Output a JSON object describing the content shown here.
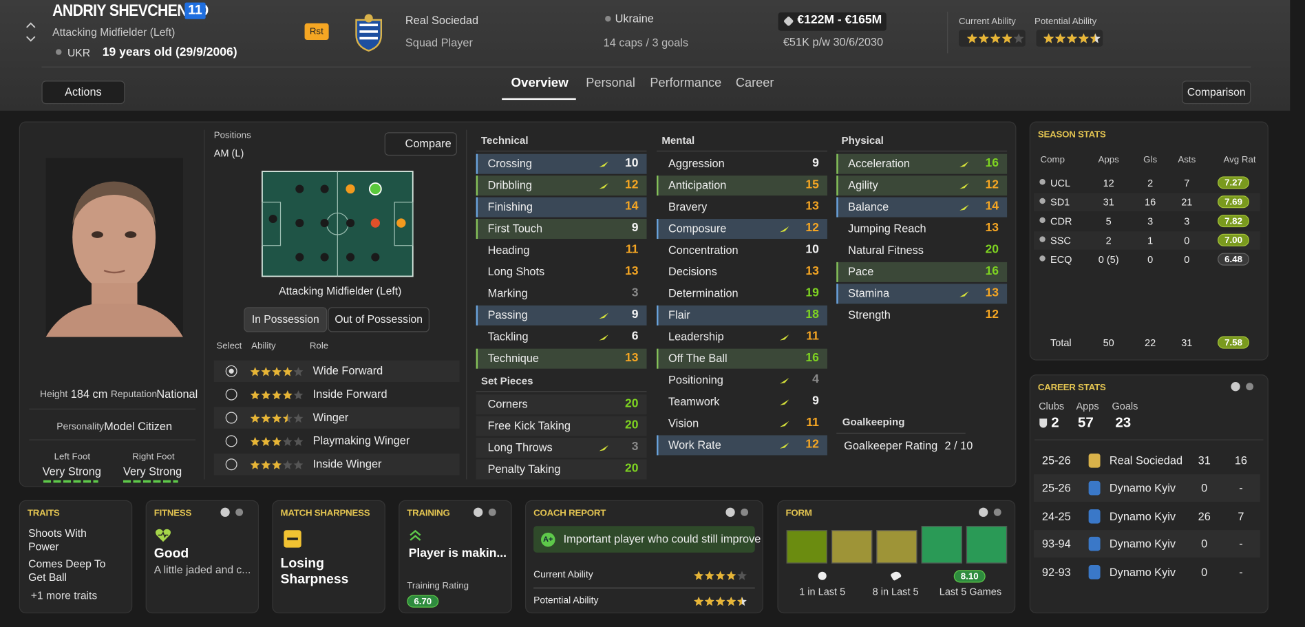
{
  "header": {
    "name": "ANDRIY SHEVCHENKO",
    "number": "11",
    "position": "Attacking Midfielder (Left)",
    "nation_code": "UKR",
    "age": "19 years old (29/9/2006)",
    "role_badge": "Rst",
    "club": "Real Sociedad",
    "squad_status": "Squad Player",
    "nation": "Ukraine",
    "caps": "14 caps / 3 goals",
    "value": "€122M - €165M",
    "wage": "€51K p/w 30/6/2030",
    "current_ability_label": "Current Ability",
    "current_ability": 4,
    "potential_ability_label": "Potential Ability",
    "potential_ability": 4.5
  },
  "nav": {
    "actions": "Actions",
    "tabs": [
      "Overview",
      "Personal",
      "Performance",
      "Career"
    ],
    "comparison": "Comparison"
  },
  "profile": {
    "height_label": "Height",
    "height": "184 cm",
    "reputation_label": "Reputation",
    "reputation": "National",
    "personality_label": "Personality",
    "personality": "Model Citizen",
    "left_foot_label": "Left Foot",
    "left_foot": "Very Strong",
    "right_foot_label": "Right Foot",
    "right_foot": "Very Strong"
  },
  "positions": {
    "title": "Positions",
    "current": "AM (L)",
    "compare": "Compare",
    "caption": "Attacking Midfielder (Left)",
    "modes": [
      "In Possession",
      "Out of Possession"
    ],
    "role_headers": [
      "Select",
      "Ability",
      "Role"
    ],
    "roles": [
      {
        "name": "Wide Forward",
        "stars": 4
      },
      {
        "name": "Inside Forward",
        "stars": 4
      },
      {
        "name": "Winger",
        "stars": 3.5
      },
      {
        "name": "Playmaking Winger",
        "stars": 3
      },
      {
        "name": "Inside Winger",
        "stars": 3
      }
    ]
  },
  "attributes": {
    "technical": {
      "title": "Technical",
      "items": [
        {
          "name": "Crossing",
          "value": 10,
          "highlight": "blue",
          "trend": true
        },
        {
          "name": "Dribbling",
          "value": 12,
          "highlight": "green",
          "trend": true
        },
        {
          "name": "Finishing",
          "value": 14,
          "highlight": "blue",
          "trend": false
        },
        {
          "name": "First Touch",
          "value": 9,
          "highlight": "green",
          "trend": false
        },
        {
          "name": "Heading",
          "value": 11,
          "highlight": null,
          "trend": false
        },
        {
          "name": "Long Shots",
          "value": 13,
          "highlight": null,
          "trend": false
        },
        {
          "name": "Marking",
          "value": 3,
          "highlight": null,
          "trend": false
        },
        {
          "name": "Passing",
          "value": 9,
          "highlight": "blue",
          "trend": true
        },
        {
          "name": "Tackling",
          "value": 6,
          "highlight": null,
          "trend": true
        },
        {
          "name": "Technique",
          "value": 13,
          "highlight": "green",
          "trend": false
        }
      ]
    },
    "set_pieces": {
      "title": "Set Pieces",
      "items": [
        {
          "name": "Corners",
          "value": 20,
          "highlight": "grey",
          "trend": false
        },
        {
          "name": "Free Kick Taking",
          "value": 20,
          "highlight": "grey",
          "trend": false
        },
        {
          "name": "Long Throws",
          "value": 3,
          "highlight": "grey",
          "trend": true
        },
        {
          "name": "Penalty Taking",
          "value": 20,
          "highlight": "grey",
          "trend": false
        }
      ]
    },
    "mental": {
      "title": "Mental",
      "items": [
        {
          "name": "Aggression",
          "value": 9,
          "highlight": null,
          "trend": false
        },
        {
          "name": "Anticipation",
          "value": 15,
          "highlight": "green",
          "trend": false
        },
        {
          "name": "Bravery",
          "value": 13,
          "highlight": null,
          "trend": false
        },
        {
          "name": "Composure",
          "value": 12,
          "highlight": "blue",
          "trend": true
        },
        {
          "name": "Concentration",
          "value": 10,
          "highlight": null,
          "trend": false
        },
        {
          "name": "Decisions",
          "value": 13,
          "highlight": null,
          "trend": false
        },
        {
          "name": "Determination",
          "value": 19,
          "highlight": null,
          "trend": false
        },
        {
          "name": "Flair",
          "value": 18,
          "highlight": "blue",
          "trend": false
        },
        {
          "name": "Leadership",
          "value": 11,
          "highlight": null,
          "trend": true
        },
        {
          "name": "Off The Ball",
          "value": 16,
          "highlight": "green",
          "trend": false
        },
        {
          "name": "Positioning",
          "value": 4,
          "highlight": null,
          "trend": true
        },
        {
          "name": "Teamwork",
          "value": 9,
          "highlight": null,
          "trend": true
        },
        {
          "name": "Vision",
          "value": 11,
          "highlight": null,
          "trend": true
        },
        {
          "name": "Work Rate",
          "value": 12,
          "highlight": "blue",
          "trend": true
        }
      ]
    },
    "physical": {
      "title": "Physical",
      "items": [
        {
          "name": "Acceleration",
          "value": 16,
          "highlight": "green",
          "trend": true
        },
        {
          "name": "Agility",
          "value": 12,
          "highlight": "green",
          "trend": true
        },
        {
          "name": "Balance",
          "value": 14,
          "highlight": "blue",
          "trend": true
        },
        {
          "name": "Jumping Reach",
          "value": 13,
          "highlight": null,
          "trend": false
        },
        {
          "name": "Natural Fitness",
          "value": 20,
          "highlight": null,
          "trend": false
        },
        {
          "name": "Pace",
          "value": 16,
          "highlight": "green",
          "trend": false
        },
        {
          "name": "Stamina",
          "value": 13,
          "highlight": "blue",
          "trend": true
        },
        {
          "name": "Strength",
          "value": 12,
          "highlight": null,
          "trend": false
        }
      ]
    },
    "goalkeeping": {
      "title": "Goalkeeping",
      "label": "Goalkeeper Rating",
      "value": "2 / 10"
    }
  },
  "season_stats": {
    "title": "SEASON STATS",
    "headers": [
      "Comp",
      "Apps",
      "Gls",
      "Asts",
      "Avg Rat"
    ],
    "rows": [
      [
        "UCL",
        "12",
        "2",
        "7",
        "7.27"
      ],
      [
        "SD1",
        "31",
        "16",
        "21",
        "7.69"
      ],
      [
        "CDR",
        "5",
        "3",
        "3",
        "7.82"
      ],
      [
        "SSC",
        "2",
        "1",
        "0",
        "7.00"
      ],
      [
        "ECQ",
        "0 (5)",
        "0",
        "0",
        "6.48"
      ]
    ],
    "total": [
      "Total",
      "50",
      "22",
      "31",
      "7.58"
    ]
  },
  "career_stats": {
    "title": "CAREER STATS",
    "clubs_label": "Clubs",
    "clubs": "2",
    "apps_label": "Apps",
    "apps": "57",
    "goals_label": "Goals",
    "goals": "23",
    "rows": [
      [
        "25-26",
        "Real Sociedad",
        "31",
        "16"
      ],
      [
        "25-26",
        "Dynamo Kyiv",
        "0",
        "-"
      ],
      [
        "24-25",
        "Dynamo Kyiv",
        "26",
        "7"
      ],
      [
        "93-94",
        "Dynamo Kyiv",
        "0",
        "-"
      ],
      [
        "92-93",
        "Dynamo Kyiv",
        "0",
        "-"
      ]
    ]
  },
  "cards": {
    "traits": {
      "title": "TRAITS",
      "items": [
        "Shoots With Power",
        "Comes Deep To Get Ball"
      ],
      "more": "+1 more traits"
    },
    "fitness": {
      "title": "FITNESS",
      "status": "Good",
      "detail": "A little jaded and c..."
    },
    "sharpness": {
      "title": "MATCH SHARPNESS",
      "status": "Losing Sharpness"
    },
    "training": {
      "title": "TRAINING",
      "status": "Player is makin...",
      "rating_label": "Training Rating",
      "rating": "6.70"
    },
    "coach": {
      "title": "COACH REPORT",
      "grade": "A+",
      "summary": "Important player who could still improve",
      "current_label": "Current Ability",
      "current": 4,
      "potential_label": "Potential Ability",
      "potential": 4.5
    },
    "form": {
      "title": "FORM",
      "goals": "1 in Last 5",
      "assists": "8 in Last 5",
      "rating": "8.10",
      "rating_label": "Last 5 Games"
    }
  }
}
